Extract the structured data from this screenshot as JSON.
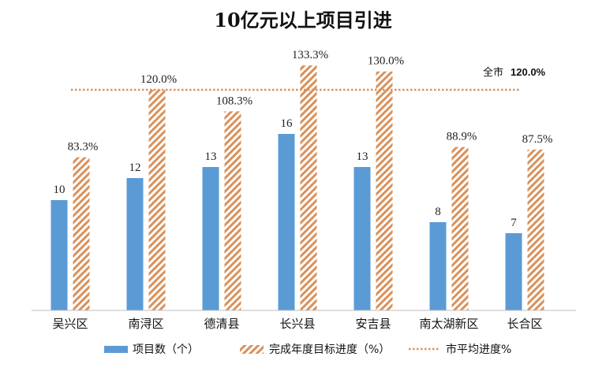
{
  "chart_data": {
    "type": "bar",
    "title": "10亿元以上项目引进",
    "categories": [
      "吴兴区",
      "南浔区",
      "德清县",
      "长兴县",
      "安吉县",
      "南太湖新区",
      "长合区"
    ],
    "series": [
      {
        "name": "项目数（个）",
        "values": [
          10,
          12,
          13,
          16,
          13,
          8,
          7
        ],
        "labels": [
          "10",
          "12",
          "13",
          "16",
          "13",
          "8",
          "7"
        ],
        "color": "#5B9BD5"
      },
      {
        "name": "完成年度目标进度（%）",
        "values": [
          83.3,
          120.0,
          108.3,
          133.3,
          130.0,
          88.9,
          87.5
        ],
        "labels": [
          "83.3%",
          "120.0%",
          "108.3%",
          "133.3%",
          "130.0%",
          "88.9%",
          "87.5%"
        ],
        "color": "#D9915A"
      }
    ],
    "average": {
      "name": "市平均进度%",
      "value": 120.0,
      "label_prefix": "全市",
      "label_value": "120.0%",
      "color": "#D9915A"
    },
    "legend": "bottom",
    "grid": false
  }
}
